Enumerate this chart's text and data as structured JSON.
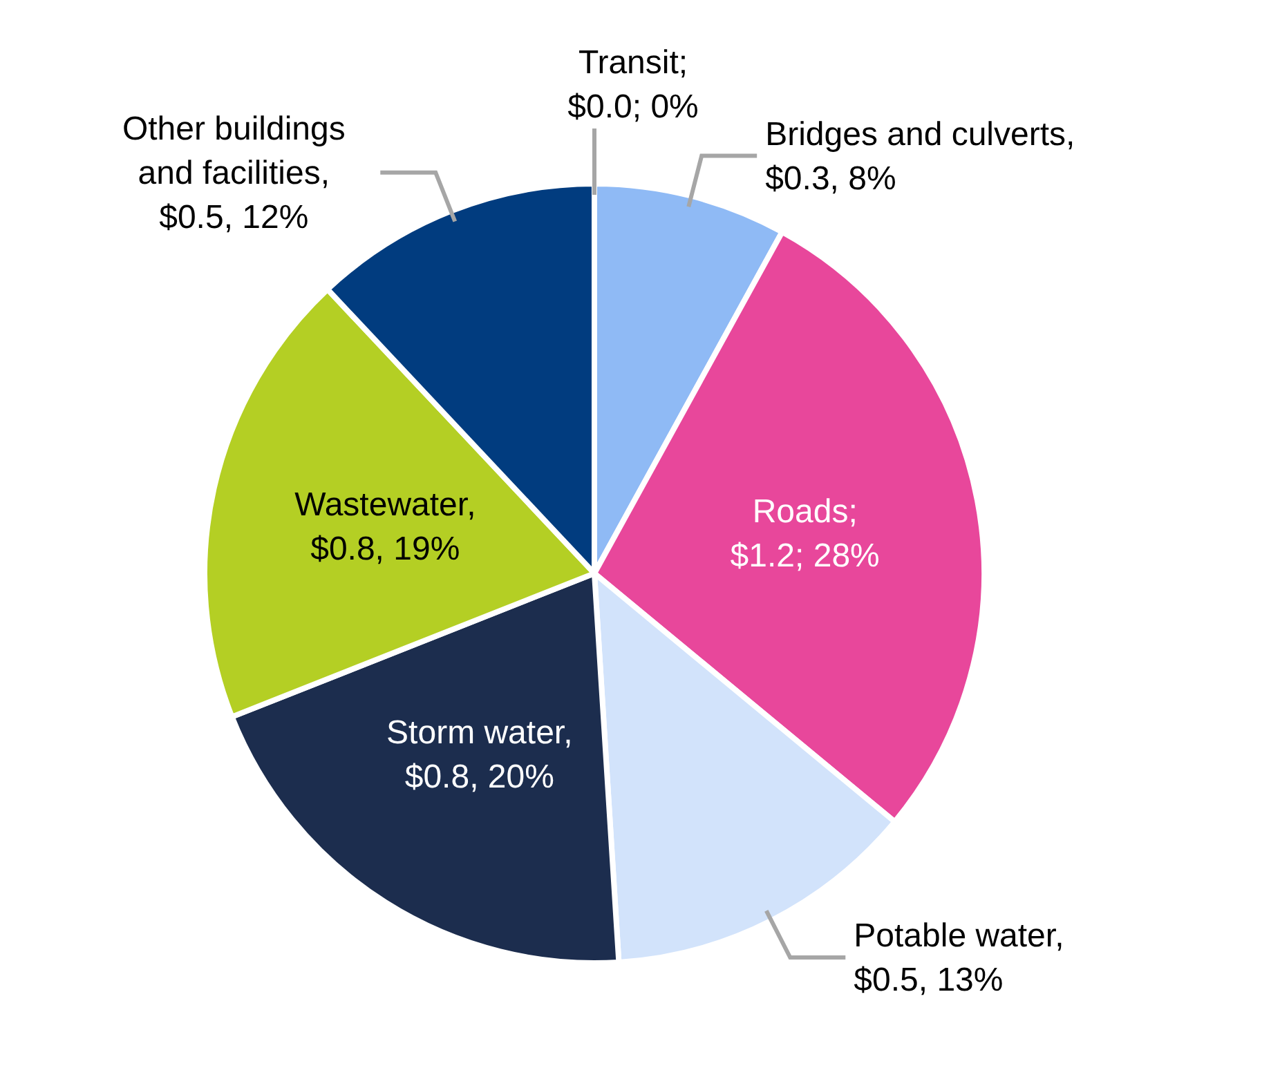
{
  "chart_data": {
    "type": "pie",
    "categories": [
      "Transit",
      "Bridges and culverts",
      "Roads",
      "Potable water",
      "Storm water",
      "Wastewater",
      "Other buildings and facilities"
    ],
    "values": [
      0,
      8,
      28,
      13,
      20,
      19,
      12
    ],
    "value_labels": [
      "; $0.0; 0%",
      ", $0.3, 8%",
      "; $1.2; 28%",
      ", $0.5, 13%",
      ", $0.8, 20%",
      ", $0.8, 19%",
      ", $0.5, 12%"
    ],
    "colors": [
      "#5b9bd5",
      "#8fbaf5",
      "#e8479b",
      "#d2e3fb",
      "#1c2d4e",
      "#b4cf24",
      "#013c7f"
    ],
    "legend": false
  }
}
